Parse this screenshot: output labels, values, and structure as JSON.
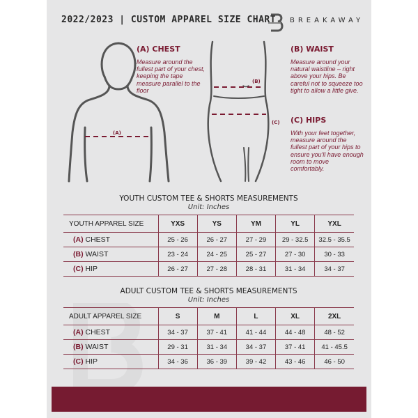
{
  "header": {
    "title": "2022/2023 | CUSTOM APPAREL SIZE CHART",
    "brand": "BREAKAWAY"
  },
  "guide": {
    "chest": {
      "title": "(A) CHEST",
      "text": "Measure around the fullest part of your chest, keeping the tape measure parallel to the floor",
      "marker": "(A)"
    },
    "waist": {
      "title": "(B) WAIST",
      "text": "Measure around your natural waistline – right above your hips. Be careful not to squeeze too tight to allow a little give.",
      "marker": "(B)"
    },
    "hips": {
      "title": "(C) HIPS",
      "text": "With your feet together, measure around the fullest part of your hips to ensure you'll have enough room to move comfortably.",
      "marker": "(C)"
    }
  },
  "youth": {
    "title": "YOUTH CUSTOM TEE & SHORTS MEASUREMENTS",
    "unit": "Unit: Inches",
    "header": [
      "YOUTH APPAREL SIZE",
      "YXS",
      "YS",
      "YM",
      "YL",
      "YXL"
    ],
    "rows": [
      {
        "code": "(A)",
        "name": "CHEST",
        "values": [
          "25 - 26",
          "26 - 27",
          "27 - 29",
          "29 - 32.5",
          "32.5 - 35.5"
        ]
      },
      {
        "code": "(B)",
        "name": "WAIST",
        "values": [
          "23 - 24",
          "24 - 25",
          "25 - 27",
          "27 - 30",
          "30 - 33"
        ]
      },
      {
        "code": "(C)",
        "name": "HIP",
        "values": [
          "26 - 27",
          "27 - 28",
          "28 - 31",
          "31 - 34",
          "34 - 37"
        ]
      }
    ]
  },
  "adult": {
    "title": "ADULT CUSTOM TEE & SHORTS MEASUREMENTS",
    "unit": "Unit: Inches",
    "header": [
      "ADULT APPAREL SIZE",
      "S",
      "M",
      "L",
      "XL",
      "2XL"
    ],
    "rows": [
      {
        "code": "(A)",
        "name": "CHEST",
        "values": [
          "34 - 37",
          "37 - 41",
          "41 - 44",
          "44 - 48",
          "48 - 52"
        ]
      },
      {
        "code": "(B)",
        "name": "WAIST",
        "values": [
          "29 - 31",
          "31 - 34",
          "34 - 37",
          "37 - 41",
          "41 - 45.5"
        ]
      },
      {
        "code": "(C)",
        "name": "HIP",
        "values": [
          "34 - 36",
          "36 - 39",
          "39 - 42",
          "43 - 46",
          "46 - 50"
        ]
      }
    ]
  },
  "colors": {
    "accent": "#761b31",
    "background": "#e6e6e7"
  }
}
